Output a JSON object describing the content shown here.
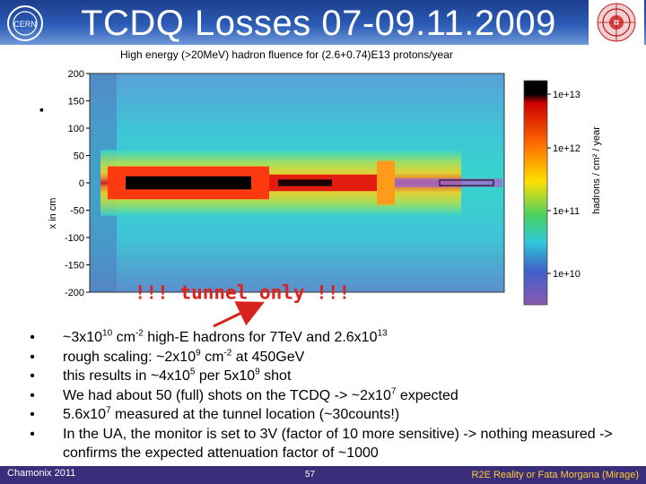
{
  "header": {
    "title": "TCDQ Losses 07-09.11.2009",
    "cern_logo_text": "CERN"
  },
  "chart_data": {
    "type": "heatmap",
    "title": "High energy (>20MeV) hadron fluence for (2.6+0.74)E13 protons/year",
    "ylabel": "x in cm",
    "yticks": [
      200,
      150,
      100,
      50,
      0,
      -50,
      -100,
      -150,
      -200
    ],
    "ylim": [
      -200,
      200
    ],
    "colorbar_label": "hadrons / cm² / year",
    "colorbar_ticks": [
      "1e+13",
      "1e+12",
      "1e+11",
      "1e+10"
    ],
    "annotation": "!!! tunnel only !!!"
  },
  "bullets": [
    {
      "parts": [
        {
          "t": "~3x10"
        },
        {
          "s": "10"
        },
        {
          "t": " cm"
        },
        {
          "s": "-2"
        },
        {
          "t": " high-E hadrons for 7TeV and 2.6x10"
        },
        {
          "s": "13"
        }
      ]
    },
    {
      "parts": [
        {
          "t": "rough scaling: ~2x10"
        },
        {
          "s": "9"
        },
        {
          "t": " cm"
        },
        {
          "s": "-2"
        },
        {
          "t": " at 450GeV"
        }
      ]
    },
    {
      "parts": [
        {
          "t": "this results in ~4x10"
        },
        {
          "s": "5"
        },
        {
          "t": " per 5x10"
        },
        {
          "s": "9"
        },
        {
          "t": " shot"
        }
      ]
    },
    {
      "parts": [
        {
          "t": "We had about 50 (full) shots on the TCDQ -> ~2x10"
        },
        {
          "s": "7"
        },
        {
          "t": " expected"
        }
      ]
    },
    {
      "parts": [
        {
          "t": "5.6x10"
        },
        {
          "s": "7"
        },
        {
          "t": " measured at the tunnel location (~30counts!)"
        }
      ]
    },
    {
      "parts": [
        {
          "t": "In the UA, the monitor is set to 3V (factor of 10 more sensitive) -> nothing measured -> confirms the expected attenuation factor of ~1000"
        }
      ]
    }
  ],
  "bullet_marker": "•",
  "stray_bullet": "▪",
  "footer": {
    "left": "Chamonix 2011",
    "page": "57",
    "right": "R2E Reality or Fata Morgana (Mirage)"
  },
  "colors": {
    "header_top": "#1d3f8c",
    "annotation": "#e0201a",
    "arrow": "#d8231c",
    "footer_bg": "#3a2d7a",
    "footer_right_text": "#ffcc33"
  }
}
